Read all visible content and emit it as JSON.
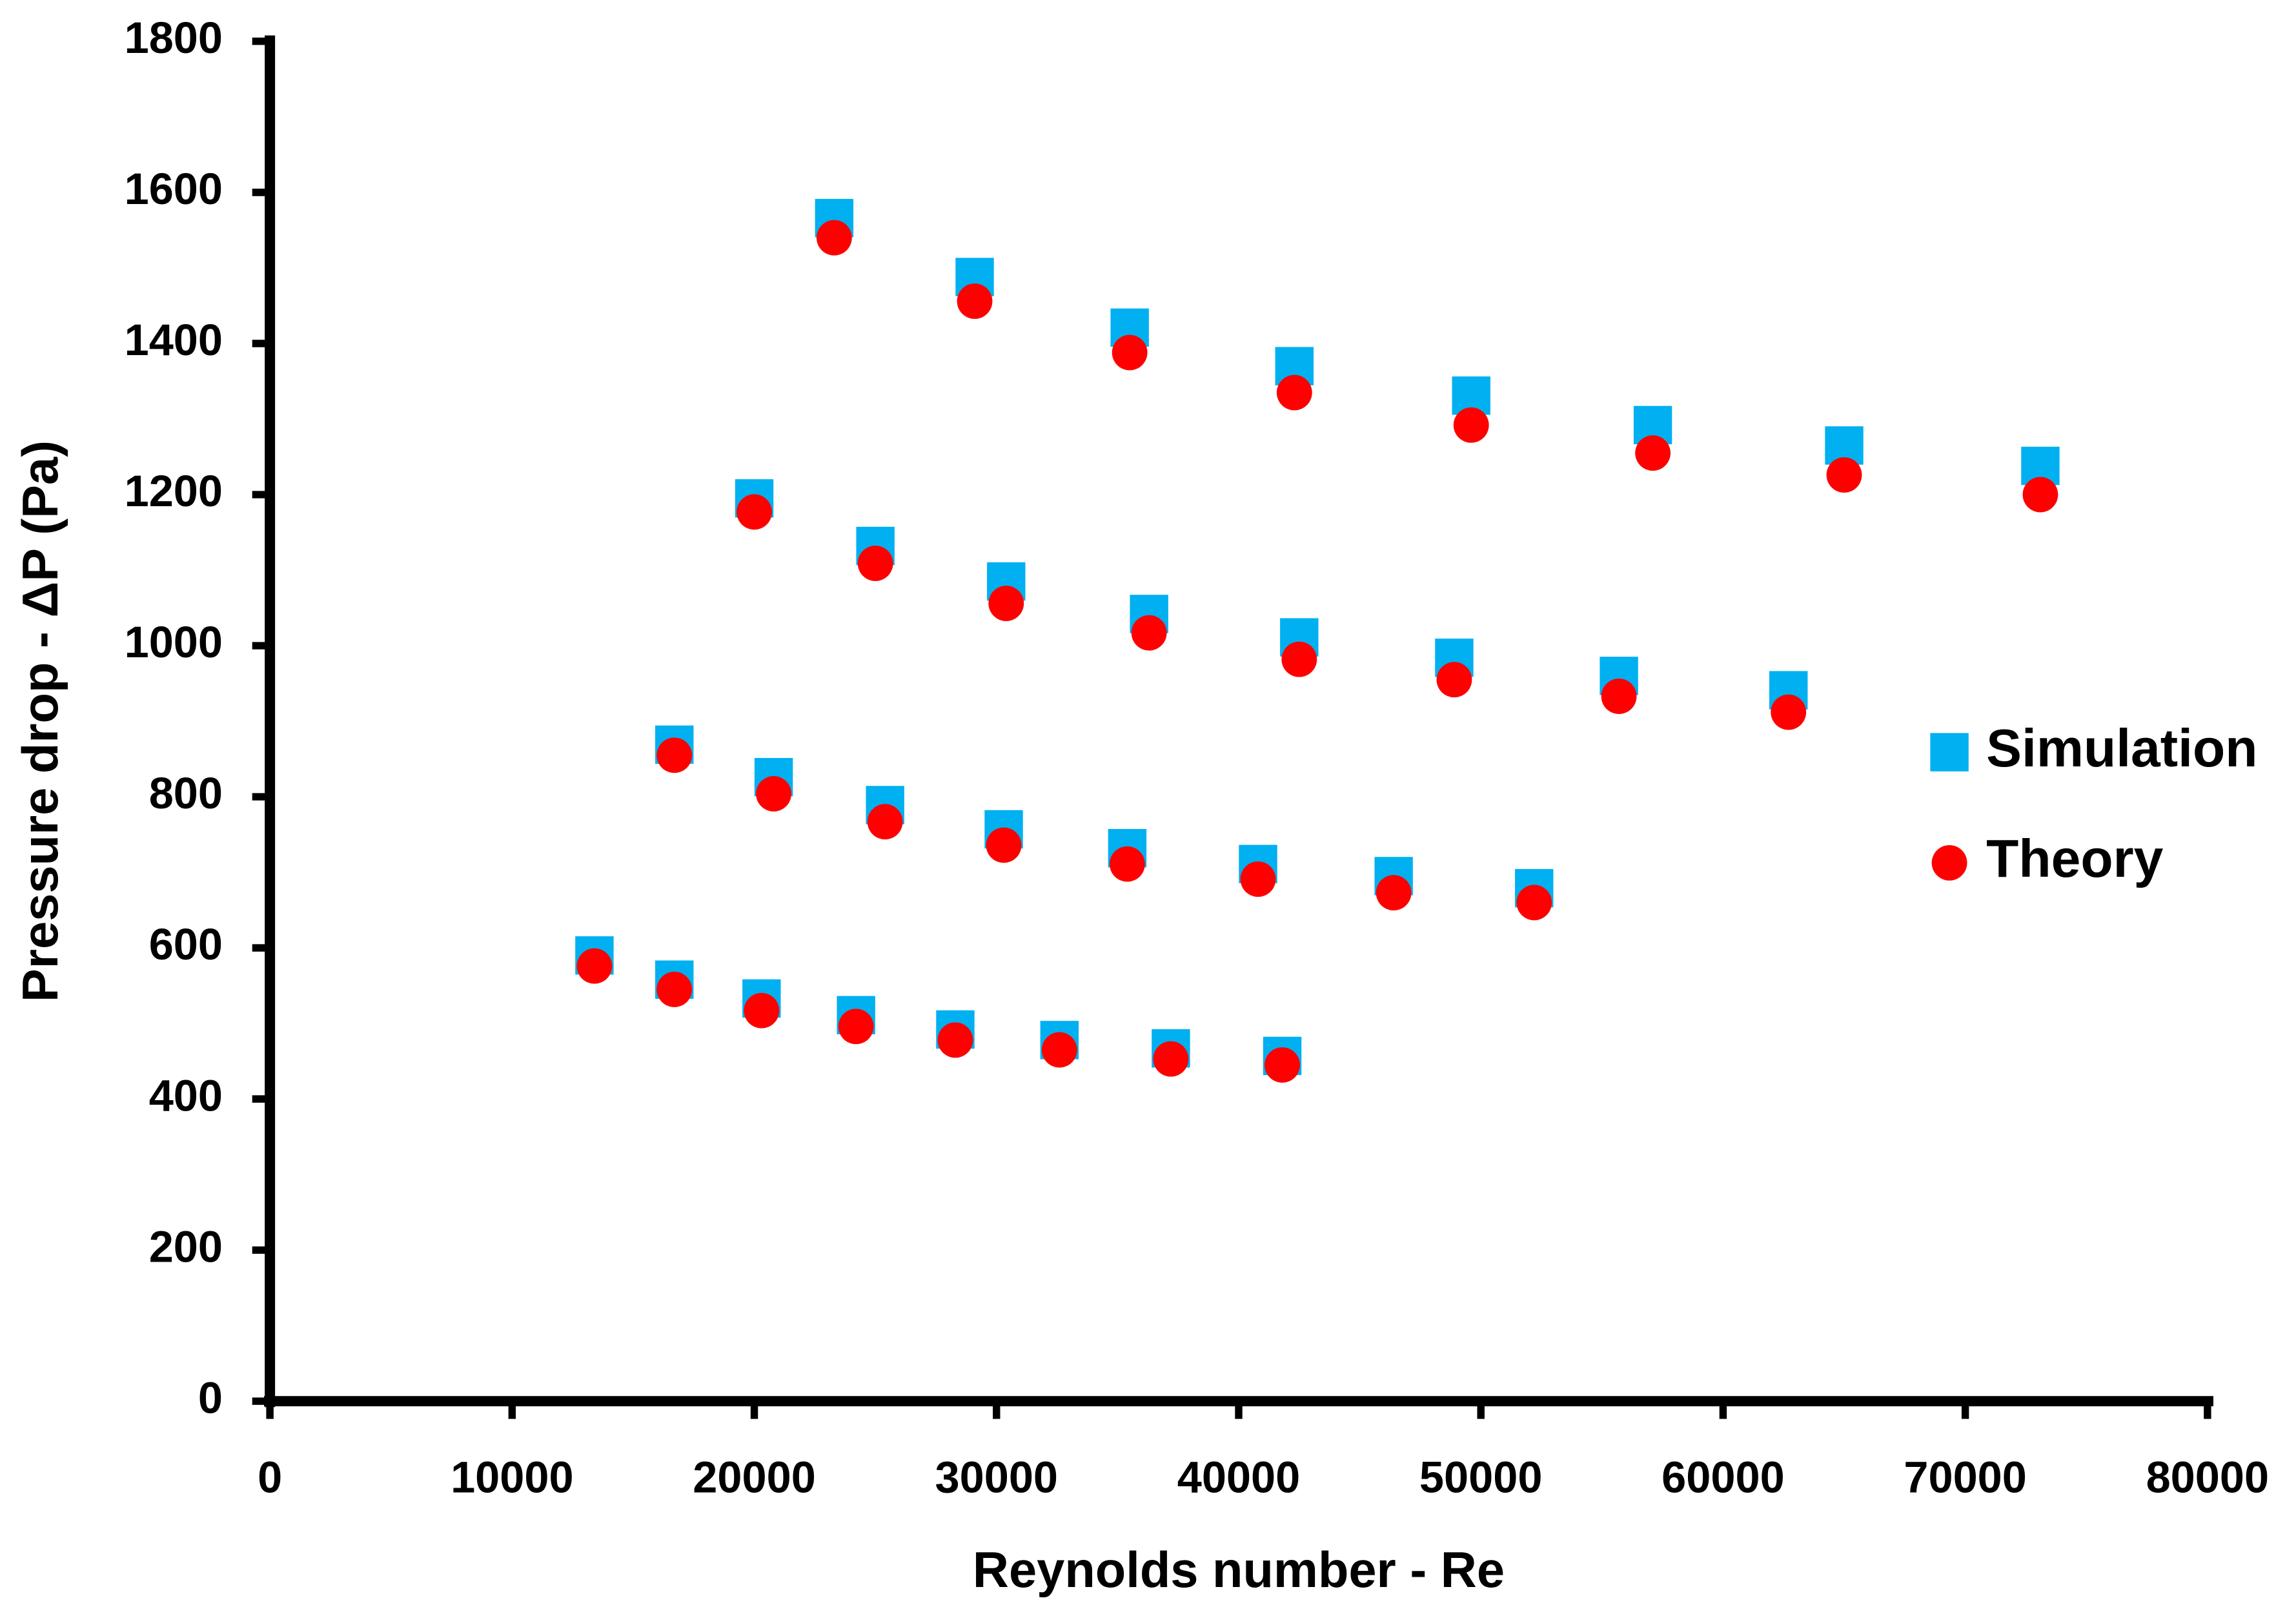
{
  "chart_data": {
    "type": "scatter",
    "x_label": "Reynolds number - Re",
    "y_label": "Pressure drop - ΔP (Pa)",
    "xlim": [
      0,
      80000
    ],
    "ylim": [
      0,
      1800
    ],
    "xticks": [
      0,
      10000,
      20000,
      30000,
      40000,
      50000,
      60000,
      70000,
      80000
    ],
    "yticks": [
      0,
      200,
      400,
      600,
      800,
      1000,
      1200,
      1400,
      1600,
      1800
    ],
    "legend": "right",
    "series": [
      {
        "name": "Simulation",
        "color": "#00b0f0",
        "marker": "square",
        "x": [
          23300,
          29100,
          35500,
          42300,
          49600,
          57100,
          65000,
          73100,
          20000,
          25000,
          30400,
          36300,
          42500,
          48900,
          55700,
          62700,
          16700,
          20800,
          25400,
          30300,
          35400,
          40800,
          46400,
          52200,
          13400,
          16700,
          20300,
          24200,
          28300,
          32600,
          37200,
          41800
        ],
        "values": [
          1566,
          1488,
          1421,
          1370,
          1331,
          1292,
          1265,
          1238,
          1195,
          1132,
          1085,
          1042,
          1011,
          984,
          960,
          941,
          869,
          826,
          789,
          757,
          732,
          711,
          695,
          679,
          590,
          558,
          533,
          511,
          492,
          478,
          467,
          457
        ]
      },
      {
        "name": "Theory",
        "color": "#ff0000",
        "marker": "circle",
        "x": [
          23300,
          29100,
          35500,
          42300,
          49600,
          57100,
          65000,
          73100,
          20000,
          25000,
          30400,
          36300,
          42500,
          48900,
          55700,
          62700,
          16700,
          20800,
          25400,
          30300,
          35400,
          40800,
          46400,
          52200,
          13400,
          16700,
          20300,
          24200,
          28300,
          32600,
          37200,
          41800
        ],
        "values": [
          1540,
          1456,
          1388,
          1335,
          1292,
          1255,
          1226,
          1200,
          1177,
          1109,
          1056,
          1017,
          982,
          955,
          933,
          912,
          855,
          804,
          767,
          736,
          711,
          691,
          673,
          660,
          576,
          545,
          517,
          496,
          478,
          465,
          453,
          445
        ]
      }
    ]
  }
}
